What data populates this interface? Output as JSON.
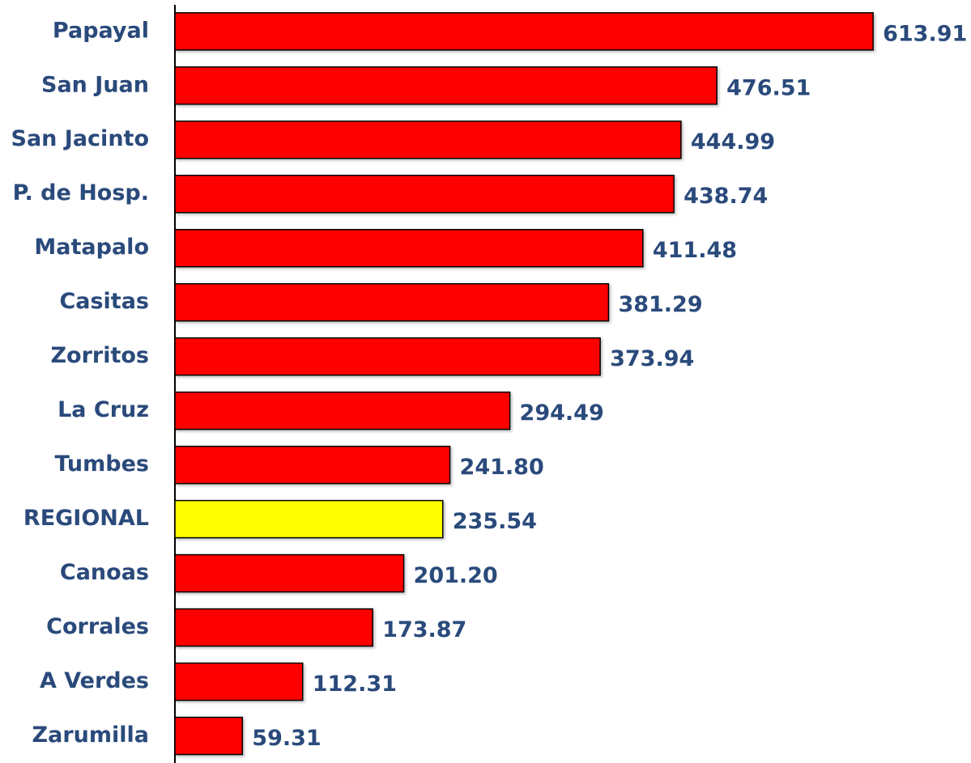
{
  "chart_data": {
    "type": "barh",
    "categories": [
      "Papayal",
      "San Juan",
      "San Jacinto",
      "P. de Hosp.",
      "Matapalo",
      "Casitas",
      "Zorritos",
      "La Cruz",
      "Tumbes",
      "REGIONAL",
      "Canoas",
      "Corrales",
      "A Verdes",
      "Zarumilla"
    ],
    "values": [
      613.91,
      476.51,
      444.99,
      438.74,
      411.48,
      381.29,
      373.94,
      294.49,
      241.8,
      235.54,
      201.2,
      173.87,
      112.31,
      59.31
    ],
    "value_labels": [
      "613.91",
      "476.51",
      "444.99",
      "438.74",
      "411.48",
      "381.29",
      "373.94",
      "294.49",
      "241.80",
      "235.54",
      "201.20",
      "173.87",
      "112.31",
      "59.31"
    ],
    "colors": [
      "#ff0000",
      "#ff0000",
      "#ff0000",
      "#ff0000",
      "#ff0000",
      "#ff0000",
      "#ff0000",
      "#ff0000",
      "#ff0000",
      "#ffff00",
      "#ff0000",
      "#ff0000",
      "#ff0000",
      "#ff0000"
    ],
    "xlim": [
      0,
      700
    ]
  }
}
